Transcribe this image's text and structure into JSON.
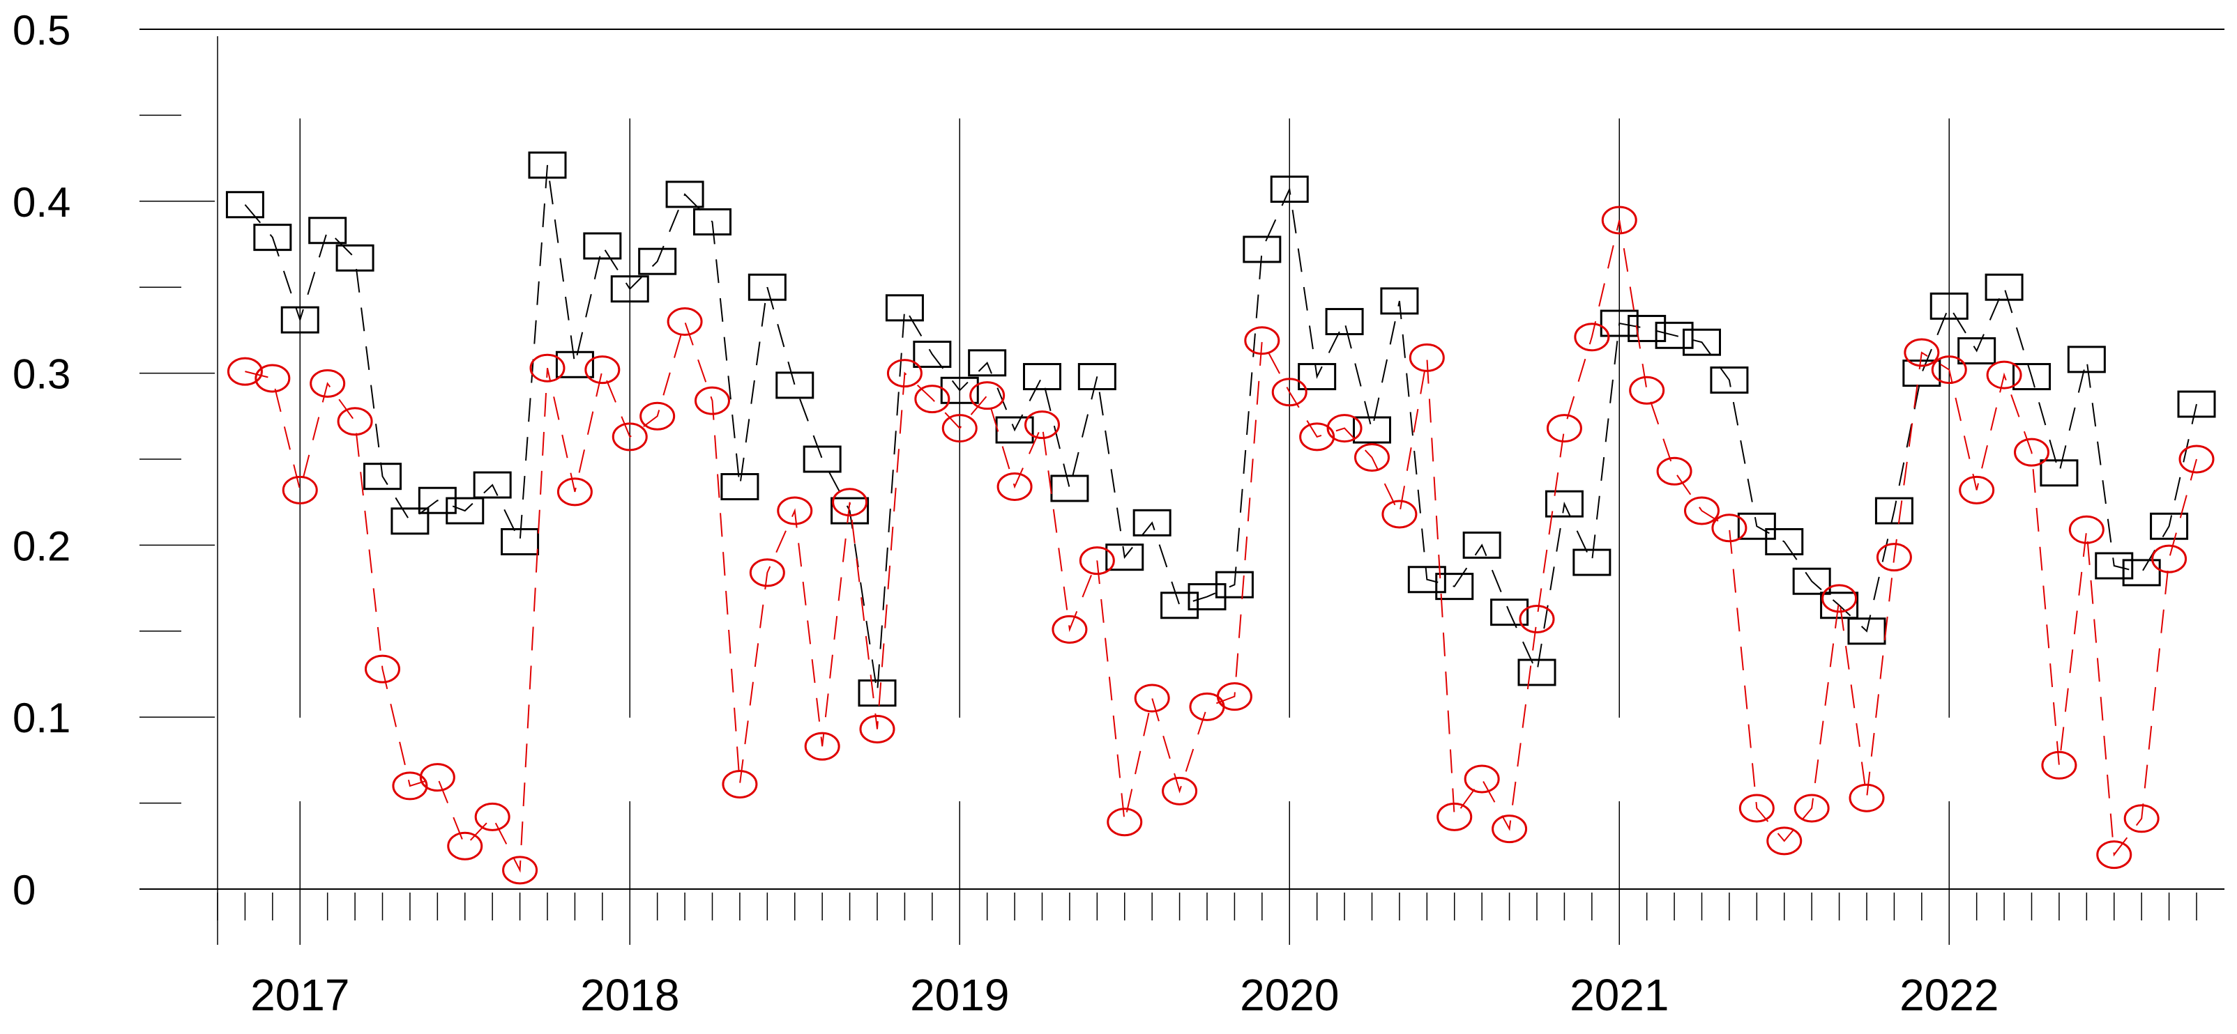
{
  "chart_data": {
    "type": "line",
    "title": "",
    "xlabel": "",
    "ylabel": "",
    "ylim": [
      0,
      0.5
    ],
    "xlim": [
      "2016-10",
      "2022-10"
    ],
    "y_ticks": [
      "0",
      "0.1",
      "0.2",
      "0.3",
      "0.4",
      "0.5"
    ],
    "x_ticks": [
      "2017",
      "2018",
      "2019",
      "2020",
      "2021",
      "2022"
    ],
    "grid": "vertical lines at year boundaries",
    "legend": "none",
    "series": [
      {
        "marker": "square",
        "color": "#000000",
        "line_style": "dashed",
        "points": [
          [
            "2016-11",
            0.398
          ],
          [
            "2016-12",
            0.379
          ],
          [
            "2017-01",
            0.331
          ],
          [
            "2017-02",
            0.383
          ],
          [
            "2017-03",
            0.367
          ],
          [
            "2017-04",
            0.24
          ],
          [
            "2017-05",
            0.214
          ],
          [
            "2017-06",
            0.226
          ],
          [
            "2017-07",
            0.22
          ],
          [
            "2017-08",
            0.235
          ],
          [
            "2017-09",
            0.202
          ],
          [
            "2017-10",
            0.421
          ],
          [
            "2017-11",
            0.305
          ],
          [
            "2017-12",
            0.374
          ],
          [
            "2018-01",
            0.349
          ],
          [
            "2018-02",
            0.365
          ],
          [
            "2018-03",
            0.404
          ],
          [
            "2018-04",
            0.388
          ],
          [
            "2018-05",
            0.234
          ],
          [
            "2018-06",
            0.35
          ],
          [
            "2018-07",
            0.293
          ],
          [
            "2018-08",
            0.25
          ],
          [
            "2018-09",
            0.22
          ],
          [
            "2018-10",
            0.114
          ],
          [
            "2018-11",
            0.338
          ],
          [
            "2018-12",
            0.311
          ],
          [
            "2019-01",
            0.29
          ],
          [
            "2019-02",
            0.306
          ],
          [
            "2019-03",
            0.267
          ],
          [
            "2019-04",
            0.298
          ],
          [
            "2019-05",
            0.233
          ],
          [
            "2019-06",
            0.298
          ],
          [
            "2019-07",
            0.193
          ],
          [
            "2019-08",
            0.213
          ],
          [
            "2019-09",
            0.165
          ],
          [
            "2019-10",
            0.17
          ],
          [
            "2019-11",
            0.177
          ],
          [
            "2019-12",
            0.372
          ],
          [
            "2020-01",
            0.407
          ],
          [
            "2020-02",
            0.298
          ],
          [
            "2020-03",
            0.33
          ],
          [
            "2020-04",
            0.267
          ],
          [
            "2020-05",
            0.342
          ],
          [
            "2020-06",
            0.18
          ],
          [
            "2020-07",
            0.176
          ],
          [
            "2020-08",
            0.2
          ],
          [
            "2020-09",
            0.161
          ],
          [
            "2020-10",
            0.126
          ],
          [
            "2020-11",
            0.224
          ],
          [
            "2020-12",
            0.19
          ],
          [
            "2021-01",
            0.329
          ],
          [
            "2021-02",
            0.326
          ],
          [
            "2021-03",
            0.322
          ],
          [
            "2021-04",
            0.318
          ],
          [
            "2021-05",
            0.296
          ],
          [
            "2021-06",
            0.211
          ],
          [
            "2021-07",
            0.202
          ],
          [
            "2021-08",
            0.179
          ],
          [
            "2021-09",
            0.165
          ],
          [
            "2021-10",
            0.15
          ],
          [
            "2021-11",
            0.22
          ],
          [
            "2021-12",
            0.3
          ],
          [
            "2022-01",
            0.339
          ],
          [
            "2022-02",
            0.313
          ],
          [
            "2022-03",
            0.35
          ],
          [
            "2022-04",
            0.298
          ],
          [
            "2022-05",
            0.242
          ],
          [
            "2022-06",
            0.308
          ],
          [
            "2022-07",
            0.188
          ],
          [
            "2022-08",
            0.184
          ],
          [
            "2022-09",
            0.211
          ],
          [
            "2022-10",
            0.282
          ]
        ]
      },
      {
        "marker": "circle",
        "color": "#e00000",
        "line_style": "dashed",
        "points": [
          [
            "2016-11",
            0.301
          ],
          [
            "2016-12",
            0.297
          ],
          [
            "2017-01",
            0.232
          ],
          [
            "2017-02",
            0.294
          ],
          [
            "2017-03",
            0.272
          ],
          [
            "2017-04",
            0.128
          ],
          [
            "2017-05",
            0.06
          ],
          [
            "2017-06",
            0.065
          ],
          [
            "2017-07",
            0.025
          ],
          [
            "2017-08",
            0.042
          ],
          [
            "2017-09",
            0.011
          ],
          [
            "2017-10",
            0.303
          ],
          [
            "2017-11",
            0.231
          ],
          [
            "2017-12",
            0.302
          ],
          [
            "2018-01",
            0.263
          ],
          [
            "2018-02",
            0.275
          ],
          [
            "2018-03",
            0.33
          ],
          [
            "2018-04",
            0.284
          ],
          [
            "2018-05",
            0.061
          ],
          [
            "2018-06",
            0.184
          ],
          [
            "2018-07",
            0.22
          ],
          [
            "2018-08",
            0.083
          ],
          [
            "2018-09",
            0.225
          ],
          [
            "2018-10",
            0.093
          ],
          [
            "2018-11",
            0.3
          ],
          [
            "2018-12",
            0.285
          ],
          [
            "2019-01",
            0.268
          ],
          [
            "2019-02",
            0.287
          ],
          [
            "2019-03",
            0.234
          ],
          [
            "2019-04",
            0.27
          ],
          [
            "2019-05",
            0.151
          ],
          [
            "2019-06",
            0.191
          ],
          [
            "2019-07",
            0.039
          ],
          [
            "2019-08",
            0.111
          ],
          [
            "2019-09",
            0.057
          ],
          [
            "2019-10",
            0.106
          ],
          [
            "2019-11",
            0.112
          ],
          [
            "2019-12",
            0.319
          ],
          [
            "2020-01",
            0.289
          ],
          [
            "2020-02",
            0.263
          ],
          [
            "2020-03",
            0.268
          ],
          [
            "2020-04",
            0.251
          ],
          [
            "2020-05",
            0.218
          ],
          [
            "2020-06",
            0.309
          ],
          [
            "2020-07",
            0.042
          ],
          [
            "2020-08",
            0.064
          ],
          [
            "2020-09",
            0.035
          ],
          [
            "2020-10",
            0.157
          ],
          [
            "2020-11",
            0.268
          ],
          [
            "2020-12",
            0.321
          ],
          [
            "2021-01",
            0.389
          ],
          [
            "2021-02",
            0.29
          ],
          [
            "2021-03",
            0.243
          ],
          [
            "2021-04",
            0.22
          ],
          [
            "2021-05",
            0.21
          ],
          [
            "2021-06",
            0.047
          ],
          [
            "2021-07",
            0.028
          ],
          [
            "2021-08",
            0.047
          ],
          [
            "2021-09",
            0.169
          ],
          [
            "2021-10",
            0.053
          ],
          [
            "2021-11",
            0.193
          ],
          [
            "2021-12",
            0.312
          ],
          [
            "2022-01",
            0.302
          ],
          [
            "2022-02",
            0.232
          ],
          [
            "2022-03",
            0.299
          ],
          [
            "2022-04",
            0.254
          ],
          [
            "2022-05",
            0.072
          ],
          [
            "2022-06",
            0.209
          ],
          [
            "2022-07",
            0.02
          ],
          [
            "2022-08",
            0.041
          ],
          [
            "2022-09",
            0.192
          ],
          [
            "2022-10",
            0.25
          ]
        ]
      }
    ]
  }
}
